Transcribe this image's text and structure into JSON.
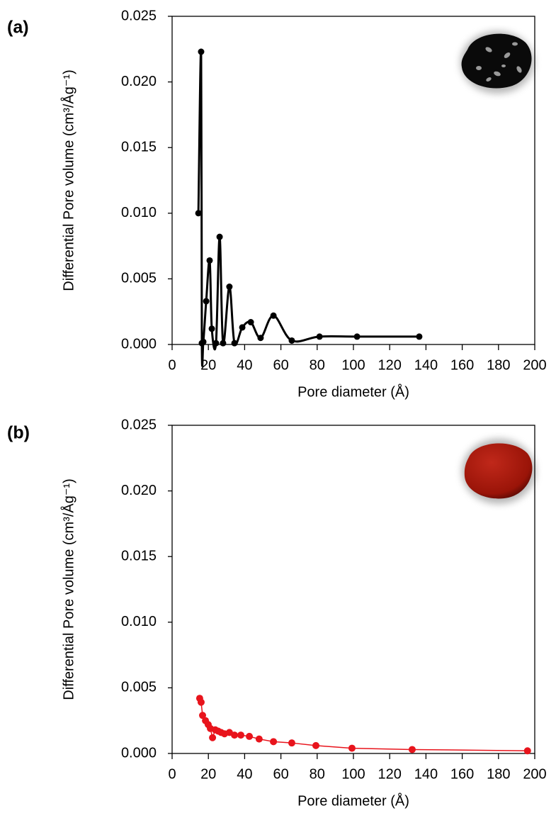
{
  "chart_data": [
    {
      "type": "line",
      "panel_label": "(a)",
      "x_label": "Pore diameter (Å)",
      "y_label": "Differential Pore volume (cm³/Åg⁻¹)",
      "smooth": true,
      "x": [
        14.5,
        16,
        16.4,
        17.2,
        18.8,
        20.7,
        21.9,
        24.2,
        26.2,
        28.1,
        31.6,
        34.4,
        38.7,
        43.4,
        48.8,
        55.9,
        66,
        81.3,
        102,
        136.3
      ],
      "series": [
        {
          "color": "#000000",
          "values": [
            0.01,
            0.0223,
            0.0001,
            0.0002,
            0.0033,
            0.0064,
            0.0012,
            0.0001,
            0.0082,
            0.0001,
            0.0044,
            0.0001,
            0.0013,
            0.0017,
            0.0005,
            0.0022,
            0.0003,
            0.0006,
            0.0006,
            0.0006
          ]
        }
      ],
      "xlim": [
        0,
        200
      ],
      "xticks": [
        0,
        20,
        40,
        60,
        80,
        100,
        120,
        140,
        160,
        180,
        200
      ],
      "ylim": [
        0,
        0.025
      ],
      "yticks": [
        {
          "value": 0,
          "label": "0.000"
        },
        0.005,
        {
          "value": 0.01,
          "label": "0.010"
        },
        0.015,
        {
          "value": 0.02,
          "label": "0.020"
        },
        0.025
      ]
    },
    {
      "type": "line",
      "panel_label": "(b)",
      "x_label": "Pore diameter (Å)",
      "y_label": "Differential Pore volume (cm³/Åg⁻¹)",
      "smooth": false,
      "x": [
        15.2,
        16,
        16.8,
        18.4,
        19.9,
        21.1,
        22.3,
        23.8,
        25.4,
        27,
        28.9,
        31.6,
        34.4,
        37.9,
        42.6,
        48,
        55.9,
        66,
        79.3,
        99.2,
        132.4,
        196
      ],
      "series": [
        {
          "color": "#e8141c",
          "values": [
            0.0042,
            0.0039,
            0.0029,
            0.0025,
            0.0022,
            0.0019,
            0.0012,
            0.0018,
            0.0017,
            0.0016,
            0.0015,
            0.0016,
            0.0014,
            0.0014,
            0.0013,
            0.0011,
            0.0009,
            0.0008,
            0.0006,
            0.0004,
            0.0003,
            0.0002
          ]
        }
      ],
      "xlim": [
        0,
        200
      ],
      "xticks": [
        0,
        20,
        40,
        60,
        80,
        100,
        120,
        140,
        160,
        180,
        200
      ],
      "ylim": [
        0,
        0.025
      ],
      "yticks": [
        {
          "value": 0,
          "label": "0.000"
        },
        0.005,
        {
          "value": 0.01,
          "label": "0.010"
        },
        0.015,
        {
          "value": 0.02,
          "label": "0.020"
        },
        0.025
      ]
    }
  ]
}
